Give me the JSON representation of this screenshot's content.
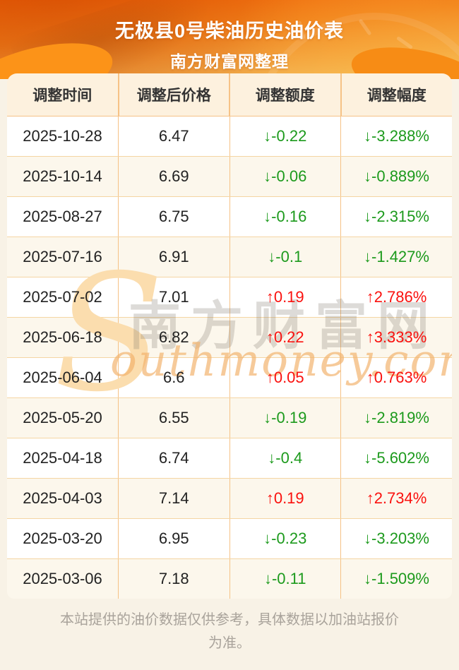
{
  "header": {
    "title": "无极县0号柴油历史油价表",
    "subtitle": "南方财富网整理"
  },
  "table": {
    "columns": [
      "调整时间",
      "调整后价格",
      "调整额度",
      "调整幅度"
    ],
    "rows": [
      {
        "date": "2025-10-28",
        "price": "6.47",
        "change": "↓-0.22",
        "pct": "↓-3.288%",
        "trend": "down"
      },
      {
        "date": "2025-10-14",
        "price": "6.69",
        "change": "↓-0.06",
        "pct": "↓-0.889%",
        "trend": "down"
      },
      {
        "date": "2025-08-27",
        "price": "6.75",
        "change": "↓-0.16",
        "pct": "↓-2.315%",
        "trend": "down"
      },
      {
        "date": "2025-07-16",
        "price": "6.91",
        "change": "↓-0.1",
        "pct": "↓-1.427%",
        "trend": "down"
      },
      {
        "date": "2025-07-02",
        "price": "7.01",
        "change": "↑0.19",
        "pct": "↑2.786%",
        "trend": "up"
      },
      {
        "date": "2025-06-18",
        "price": "6.82",
        "change": "↑0.22",
        "pct": "↑3.333%",
        "trend": "up"
      },
      {
        "date": "2025-06-04",
        "price": "6.6",
        "change": "↑0.05",
        "pct": "↑0.763%",
        "trend": "up"
      },
      {
        "date": "2025-05-20",
        "price": "6.55",
        "change": "↓-0.19",
        "pct": "↓-2.819%",
        "trend": "down"
      },
      {
        "date": "2025-04-18",
        "price": "6.74",
        "change": "↓-0.4",
        "pct": "↓-5.602%",
        "trend": "down"
      },
      {
        "date": "2025-04-03",
        "price": "7.14",
        "change": "↑0.19",
        "pct": "↑2.734%",
        "trend": "up"
      },
      {
        "date": "2025-03-20",
        "price": "6.95",
        "change": "↓-0.23",
        "pct": "↓-3.203%",
        "trend": "down"
      },
      {
        "date": "2025-03-06",
        "price": "7.18",
        "change": "↓-0.11",
        "pct": "↓-1.509%",
        "trend": "down"
      }
    ]
  },
  "watermark": {
    "swoosh": "S",
    "cn": "南方财富网",
    "en": "outhmoney.com"
  },
  "footer": {
    "disclaimer": "本站提供的油价数据仅供参考，具体数据以加油站报价为准。"
  },
  "colors": {
    "up_red": "#fa110e",
    "down_green": "#1c9a1c",
    "banner_orange_top": "#ee6106",
    "banner_orange_bottom": "#f2c569",
    "table_header_bg": "#fdf1de",
    "row_stripe_bg": "#fcf7ec",
    "grid_line": "#f6c286",
    "page_bg": "#f8f2e6",
    "footer_text": "#a9a39b"
  },
  "chart_data": {
    "type": "table",
    "title": "无极县0号柴油历史油价表",
    "subtitle": "南方财富网整理",
    "columns": [
      "调整时间",
      "调整后价格",
      "调整额度",
      "调整幅度"
    ],
    "rows": [
      [
        "2025-10-28",
        6.47,
        -0.22,
        "-3.288%"
      ],
      [
        "2025-10-14",
        6.69,
        -0.06,
        "-0.889%"
      ],
      [
        "2025-08-27",
        6.75,
        -0.16,
        "-2.315%"
      ],
      [
        "2025-07-16",
        6.91,
        -0.1,
        "-1.427%"
      ],
      [
        "2025-07-02",
        7.01,
        0.19,
        "2.786%"
      ],
      [
        "2025-06-18",
        6.82,
        0.22,
        "3.333%"
      ],
      [
        "2025-06-04",
        6.6,
        0.05,
        "0.763%"
      ],
      [
        "2025-05-20",
        6.55,
        -0.19,
        "-2.819%"
      ],
      [
        "2025-04-18",
        6.74,
        -0.4,
        "-5.602%"
      ],
      [
        "2025-04-03",
        7.14,
        0.19,
        "2.734%"
      ],
      [
        "2025-03-20",
        6.95,
        -0.23,
        "-3.203%"
      ],
      [
        "2025-03-06",
        7.18,
        -0.11,
        "-1.509%"
      ]
    ]
  }
}
